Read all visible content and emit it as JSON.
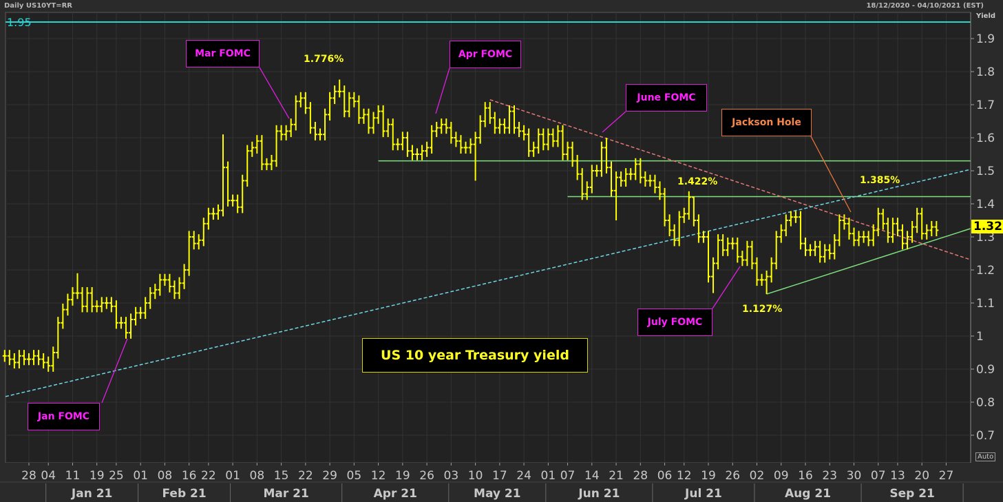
{
  "header": {
    "instrument": "Daily US10YT=RR",
    "date_range": "18/12/2020 - 04/10/2021 (EST)",
    "axis_title": "Yield",
    "auto_label": "Auto"
  },
  "chart_data": {
    "type": "ohlc",
    "title": "US 10 year Treasury yield",
    "ylabel": "Yield",
    "ylim": [
      0.64,
      1.98
    ],
    "y_ticks": [
      "1.9",
      "1.8",
      "1.7",
      "1.6",
      "1.5",
      "1.4",
      "1.3",
      "1.2",
      "1.1",
      "1",
      "0.9",
      "0.8",
      "0.7"
    ],
    "y_tick_values": [
      1.9,
      1.8,
      1.7,
      1.6,
      1.5,
      1.4,
      1.3,
      1.2,
      1.1,
      1.0,
      0.9,
      0.8,
      0.7
    ],
    "x_ticks": [
      {
        "label": "28",
        "i": 5
      },
      {
        "label": "04",
        "i": 9
      },
      {
        "label": "11",
        "i": 14
      },
      {
        "label": "19",
        "i": 19
      },
      {
        "label": "25",
        "i": 23
      },
      {
        "label": "01",
        "i": 28
      },
      {
        "label": "08",
        "i": 33
      },
      {
        "label": "16",
        "i": 38
      },
      {
        "label": "22",
        "i": 42
      },
      {
        "label": "01",
        "i": 47
      },
      {
        "label": "08",
        "i": 52
      },
      {
        "label": "15",
        "i": 57
      },
      {
        "label": "22",
        "i": 62
      },
      {
        "label": "29",
        "i": 67
      },
      {
        "label": "05",
        "i": 72
      },
      {
        "label": "12",
        "i": 77
      },
      {
        "label": "19",
        "i": 82
      },
      {
        "label": "26",
        "i": 87
      },
      {
        "label": "03",
        "i": 92
      },
      {
        "label": "10",
        "i": 97
      },
      {
        "label": "17",
        "i": 102
      },
      {
        "label": "24",
        "i": 107
      },
      {
        "label": "01",
        "i": 112
      },
      {
        "label": "07",
        "i": 116
      },
      {
        "label": "14",
        "i": 121
      },
      {
        "label": "21",
        "i": 126
      },
      {
        "label": "28",
        "i": 131
      },
      {
        "label": "06",
        "i": 136
      },
      {
        "label": "12",
        "i": 140
      },
      {
        "label": "19",
        "i": 145
      },
      {
        "label": "26",
        "i": 150
      },
      {
        "label": "02",
        "i": 155
      },
      {
        "label": "09",
        "i": 160
      },
      {
        "label": "16",
        "i": 165
      },
      {
        "label": "23",
        "i": 170
      },
      {
        "label": "30",
        "i": 175
      },
      {
        "label": "07",
        "i": 180
      },
      {
        "label": "13",
        "i": 184
      },
      {
        "label": "20",
        "i": 189
      },
      {
        "label": "27",
        "i": 194
      }
    ],
    "months": [
      {
        "label": "Jan 21",
        "start": 8.5,
        "end": 27.5
      },
      {
        "label": "Feb 21",
        "start": 27.5,
        "end": 46.5
      },
      {
        "label": "Mar 21",
        "start": 46.5,
        "end": 69.5
      },
      {
        "label": "Apr 21",
        "start": 69.5,
        "end": 91.5
      },
      {
        "label": "May 21",
        "start": 91.5,
        "end": 111.5
      },
      {
        "label": "Jun 21",
        "start": 111.5,
        "end": 133.5
      },
      {
        "label": "Jul 21",
        "start": 133.5,
        "end": 154.5
      },
      {
        "label": "Aug 21",
        "start": 154.5,
        "end": 176.5
      },
      {
        "label": "Sep 21",
        "start": 176.5,
        "end": 197.5
      }
    ],
    "closes": [
      0.94,
      0.93,
      0.92,
      0.94,
      0.93,
      0.93,
      0.94,
      0.93,
      0.92,
      0.91,
      0.95,
      1.04,
      1.08,
      1.11,
      1.13,
      1.13,
      1.09,
      1.13,
      1.09,
      1.09,
      1.1,
      1.1,
      1.09,
      1.04,
      1.04,
      1.01,
      1.05,
      1.07,
      1.07,
      1.1,
      1.13,
      1.14,
      1.17,
      1.17,
      1.15,
      1.13,
      1.16,
      1.2,
      1.3,
      1.28,
      1.29,
      1.34,
      1.37,
      1.37,
      1.38,
      1.51,
      1.41,
      1.41,
      1.39,
      1.47,
      1.56,
      1.57,
      1.59,
      1.52,
      1.52,
      1.53,
      1.62,
      1.61,
      1.62,
      1.64,
      1.71,
      1.72,
      1.69,
      1.63,
      1.61,
      1.61,
      1.67,
      1.72,
      1.74,
      1.74,
      1.68,
      1.72,
      1.71,
      1.66,
      1.67,
      1.63,
      1.66,
      1.68,
      1.62,
      1.64,
      1.58,
      1.58,
      1.6,
      1.56,
      1.55,
      1.55,
      1.56,
      1.57,
      1.62,
      1.63,
      1.64,
      1.63,
      1.6,
      1.59,
      1.57,
      1.57,
      1.58,
      1.6,
      1.65,
      1.69,
      1.66,
      1.63,
      1.64,
      1.63,
      1.68,
      1.63,
      1.62,
      1.61,
      1.56,
      1.57,
      1.61,
      1.58,
      1.61,
      1.59,
      1.62,
      1.55,
      1.57,
      1.53,
      1.49,
      1.43,
      1.45,
      1.5,
      1.5,
      1.57,
      1.51,
      1.44,
      1.48,
      1.47,
      1.49,
      1.49,
      1.52,
      1.48,
      1.47,
      1.47,
      1.45,
      1.43,
      1.35,
      1.32,
      1.29,
      1.36,
      1.37,
      1.42,
      1.35,
      1.3,
      1.3,
      1.18,
      1.22,
      1.29,
      1.26,
      1.28,
      1.28,
      1.24,
      1.23,
      1.27,
      1.22,
      1.17,
      1.17,
      1.18,
      1.22,
      1.3,
      1.32,
      1.35,
      1.36,
      1.36,
      1.28,
      1.26,
      1.26,
      1.27,
      1.24,
      1.26,
      1.25,
      1.29,
      1.35,
      1.34,
      1.31,
      1.29,
      1.3,
      1.3,
      1.29,
      1.32,
      1.37,
      1.34,
      1.3,
      1.34,
      1.32,
      1.28,
      1.3,
      1.33,
      1.37,
      1.31,
      1.32,
      1.33,
      1.32
    ],
    "extremes": [
      {
        "i": 15,
        "high": 1.19
      },
      {
        "i": 45,
        "high": 1.61
      },
      {
        "i": 69,
        "high": 1.776
      },
      {
        "i": 97,
        "low": 1.47
      },
      {
        "i": 124,
        "high": 1.6
      },
      {
        "i": 126,
        "low": 1.35
      },
      {
        "i": 142,
        "high": 1.422
      },
      {
        "i": 146,
        "low": 1.13
      },
      {
        "i": 157,
        "low": 1.127
      },
      {
        "i": 181,
        "high": 1.385
      }
    ],
    "lines": [
      {
        "name": "ceiling-1-95",
        "style": "solid",
        "color": "#2ad4d4",
        "from": {
          "i": -1,
          "v": 1.95
        },
        "to": {
          "i": 199,
          "v": 1.95
        }
      },
      {
        "name": "resistance-1-53",
        "style": "solid",
        "color": "#7ee07e",
        "from": {
          "i": 77,
          "v": 1.53
        },
        "to": {
          "i": 199,
          "v": 1.53
        }
      },
      {
        "name": "resistance-1-422",
        "style": "solid",
        "color": "#7ee07e",
        "from": {
          "i": 116,
          "v": 1.422
        },
        "to": {
          "i": 199,
          "v": 1.422
        }
      },
      {
        "name": "support-uptrend",
        "style": "solid",
        "color": "#7ee07e",
        "from": {
          "i": 157,
          "v": 1.127
        },
        "to": {
          "i": 199,
          "v": 1.325
        }
      },
      {
        "name": "downtrend-dashed",
        "style": "dashed",
        "color": "#e87878",
        "from": {
          "i": 100,
          "v": 1.715
        },
        "to": {
          "i": 199,
          "v": 1.231
        }
      },
      {
        "name": "long-uptrend-dashed",
        "style": "dashed",
        "color": "#6fd8e8",
        "from": {
          "i": -0.9,
          "v": 0.817
        },
        "to": {
          "i": 199,
          "v": 1.504
        }
      }
    ],
    "ceiling_label": "1.95",
    "last_value": "1.32",
    "value_labels": [
      "1.776%",
      "1.422%",
      "1.385%",
      "1.127%"
    ],
    "annotations": [
      "Jan FOMC",
      "Mar FOMC",
      "Apr FOMC",
      "June FOMC",
      "July FOMC",
      "Jackson Hole"
    ],
    "colors": {
      "bars": "#ffff00",
      "fomc": "#ff22ff",
      "jackson": "#e8743b",
      "background": "#222222"
    }
  }
}
